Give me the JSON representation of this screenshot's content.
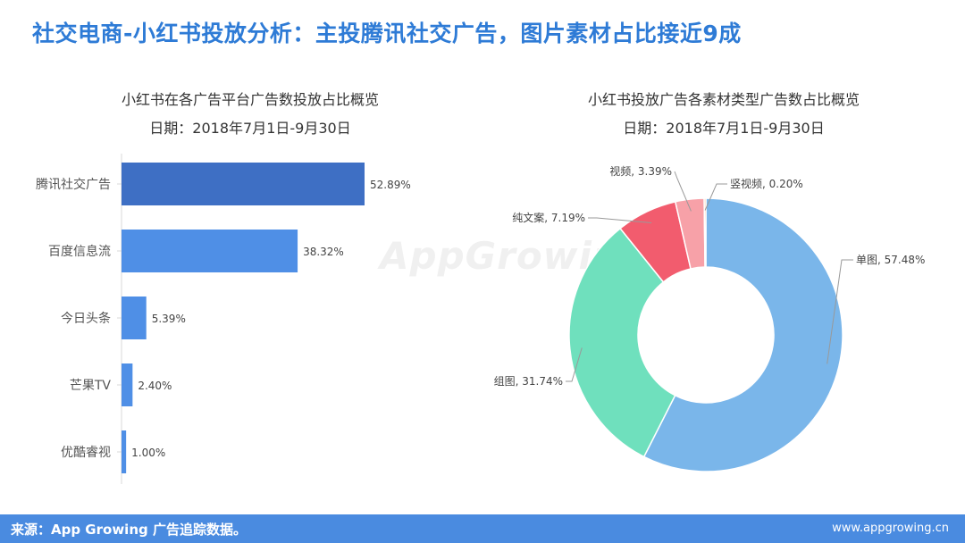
{
  "header": {
    "title": "社交电商-小红书投放分析：主投腾讯社交广告，图片素材占比接近9成"
  },
  "bar_chart": {
    "title": "小红书在各广告平台广告数投放占比概览",
    "date": "日期：2018年7月1日-9月30日"
  },
  "pie_chart": {
    "title": "小红书投放广告各素材类型广告数占比概览",
    "date": "日期：2018年7月1日-9月30日"
  },
  "watermark": "AppGrowing",
  "footer": {
    "source": "来源：App Growing 广告追踪数据。",
    "website": "www.appgrowing.cn"
  },
  "colors": {
    "accent": "#2e7bd6",
    "bar_primary": "#3e6fc4",
    "bar_secondary": "#4f8fe6",
    "footer": "#4a8be0"
  },
  "chart_data": [
    {
      "type": "bar",
      "orientation": "horizontal",
      "categories": [
        "腾讯社交广告",
        "百度信息流",
        "今日头条",
        "芒果TV",
        "优酷睿视"
      ],
      "values": [
        52.89,
        38.32,
        5.39,
        2.4,
        1.0
      ],
      "labels": [
        "52.89%",
        "38.32%",
        "5.39%",
        "2.40%",
        "1.00%"
      ],
      "unit": "%",
      "xlim": [
        0,
        60
      ],
      "grid": false,
      "legend": "none"
    },
    {
      "type": "pie",
      "style": "donut",
      "categories": [
        "单图",
        "组图",
        "纯文案",
        "视频",
        "竖视频"
      ],
      "values": [
        57.48,
        31.74,
        7.19,
        3.39,
        0.2
      ],
      "labels": [
        "单图, 57.48%",
        "组图, 31.74%",
        "纯文案, 7.19%",
        "视频, 3.39%",
        "竖视频, 0.20%"
      ],
      "colors": [
        "#7ab6ea",
        "#6fe0bd",
        "#f25c6e",
        "#f7a1a8",
        "#f4b183"
      ],
      "legend": "none"
    }
  ]
}
